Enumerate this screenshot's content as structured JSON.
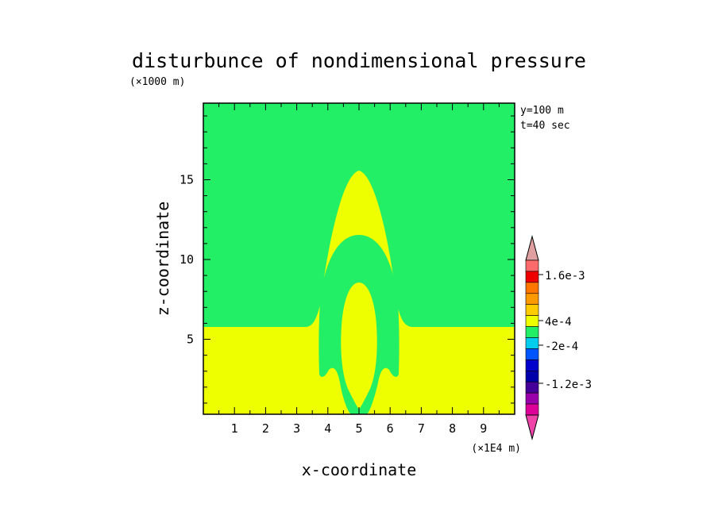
{
  "chart_data": {
    "type": "heatmap",
    "title": "disturbunce of nondimensional pressure",
    "xlabel": "x-coordinate",
    "ylabel": "z-coordinate",
    "x_unit": "(×1E4 m)",
    "y_unit": "(×1000 m)",
    "xlim": [
      0,
      10
    ],
    "ylim": [
      0.3,
      19.8
    ],
    "x_ticks": [
      "1",
      "2",
      "3",
      "4",
      "5",
      "6",
      "7",
      "8",
      "9"
    ],
    "y_ticks": [
      "5",
      "10",
      "15"
    ],
    "annotations": [
      "y=100 m",
      "t=40 sec"
    ],
    "fields": {
      "background_upper": "-2e-4 to 4e-4",
      "background_lower": "4e-4 to 1e-3",
      "arch_outer_peak_z": 15.5,
      "arch_middle_peak_z": 11.4,
      "arch_inner_peak_z": 8.4,
      "lower_layer_top_z": 5.6,
      "center_x": 5.0
    },
    "colorbar": {
      "labels": [
        "1.6e-3",
        "4e-4",
        "-2e-4",
        "-1.2e-3"
      ],
      "colors": [
        "#e0a0a0",
        "#ff6a6a",
        "#ee0000",
        "#ff7700",
        "#ff9900",
        "#ffcc00",
        "#eeff00",
        "#22ee66",
        "#00ccee",
        "#0055ff",
        "#0000cc",
        "#0000aa",
        "#440099",
        "#9900aa",
        "#dd0099",
        "#ee44aa"
      ],
      "color_upper": "#22ee66",
      "color_lower": "#eeff00"
    }
  }
}
